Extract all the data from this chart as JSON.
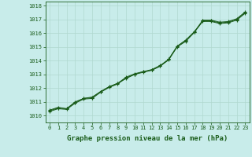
{
  "title": "Graphe pression niveau de la mer (hPa)",
  "bg_color": "#c8ecea",
  "grid_color": "#b0d8d0",
  "line_color": "#1a5c1a",
  "xlim": [
    -0.5,
    23.5
  ],
  "ylim": [
    1009.5,
    1018.3
  ],
  "yticks": [
    1010,
    1011,
    1012,
    1013,
    1014,
    1015,
    1016,
    1017,
    1018
  ],
  "xticks": [
    0,
    1,
    2,
    3,
    4,
    5,
    6,
    7,
    8,
    9,
    10,
    11,
    12,
    13,
    14,
    15,
    16,
    17,
    18,
    19,
    20,
    21,
    22,
    23
  ],
  "series": [
    [
      1010.4,
      1010.6,
      1010.5,
      1011.0,
      1011.25,
      1011.35,
      1011.75,
      1012.1,
      1012.35,
      1012.7,
      1013.0,
      1013.2,
      1013.3,
      1013.6,
      1014.1,
      1015.05,
      1015.45,
      1016.05,
      1016.95,
      1016.95,
      1016.8,
      1016.85,
      1017.05,
      1017.55
    ],
    [
      1010.35,
      1010.55,
      1010.5,
      1010.95,
      1011.25,
      1011.3,
      1011.75,
      1012.1,
      1012.35,
      1012.8,
      1013.05,
      1013.2,
      1013.35,
      1013.65,
      1014.1,
      1015.05,
      1015.5,
      1016.1,
      1016.9,
      1016.9,
      1016.75,
      1016.8,
      1017.0,
      1017.5
    ],
    [
      1010.3,
      1010.5,
      1010.45,
      1010.9,
      1011.2,
      1011.25,
      1011.7,
      1012.05,
      1012.3,
      1012.75,
      1013.0,
      1013.15,
      1013.3,
      1013.6,
      1014.05,
      1015.0,
      1015.4,
      1016.05,
      1016.85,
      1016.85,
      1016.7,
      1016.75,
      1016.95,
      1017.45
    ]
  ],
  "title_fontsize": 6.5,
  "tick_fontsize": 5.0
}
